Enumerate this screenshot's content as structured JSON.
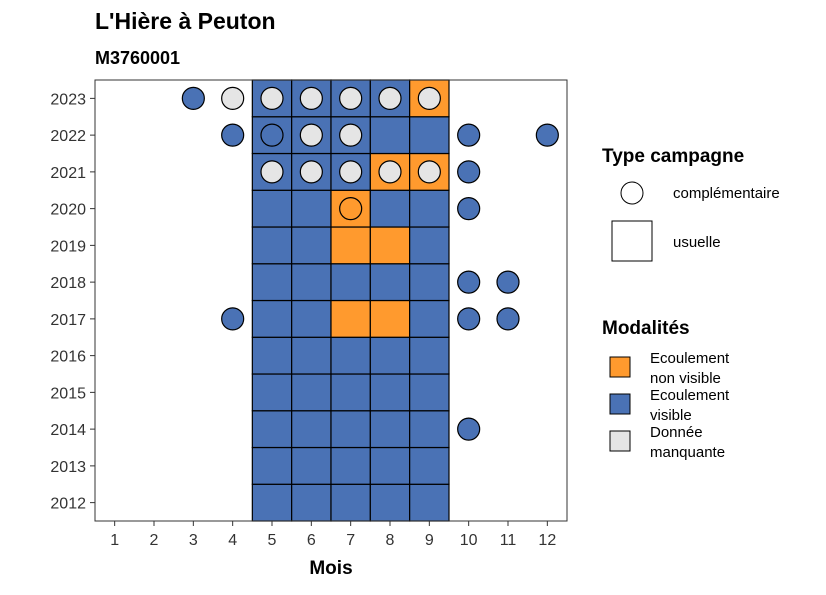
{
  "chart_data": {
    "type": "heatmap",
    "title": "L'Hière à Peuton",
    "subtitle": "M3760001",
    "xlabel": "Mois",
    "ylabel": "",
    "x_ticks": [
      1,
      2,
      3,
      4,
      5,
      6,
      7,
      8,
      9,
      10,
      11,
      12
    ],
    "y_ticks": [
      2012,
      2013,
      2014,
      2015,
      2016,
      2017,
      2018,
      2019,
      2020,
      2021,
      2022,
      2023
    ],
    "xlim": [
      0.5,
      12.5
    ],
    "ylim": [
      2011.5,
      2023.5
    ],
    "grid": false,
    "colors": {
      "non_visible": "#FF9A2E",
      "visible": "#4A72B5",
      "missing": "#E5E5E5"
    },
    "legend_campaign": {
      "title": "Type campagne",
      "placement": "right",
      "entries": [
        {
          "label": "complémentaire",
          "shape": "circle"
        },
        {
          "label": "usuelle",
          "shape": "square"
        }
      ]
    },
    "legend_modalities": {
      "title": "Modalités",
      "placement": "right",
      "entries": [
        {
          "line1": "Ecoulement",
          "line2": "non visible",
          "key": "non_visible"
        },
        {
          "line1": "Ecoulement",
          "line2": "visible",
          "key": "visible"
        },
        {
          "line1": "Donnée",
          "line2": "manquante",
          "key": "missing"
        }
      ]
    },
    "tiles": [
      {
        "year": 2012,
        "month": 5,
        "modality": "visible"
      },
      {
        "year": 2012,
        "month": 6,
        "modality": "visible"
      },
      {
        "year": 2012,
        "month": 7,
        "modality": "visible"
      },
      {
        "year": 2012,
        "month": 8,
        "modality": "visible"
      },
      {
        "year": 2012,
        "month": 9,
        "modality": "visible"
      },
      {
        "year": 2013,
        "month": 5,
        "modality": "visible"
      },
      {
        "year": 2013,
        "month": 6,
        "modality": "visible"
      },
      {
        "year": 2013,
        "month": 7,
        "modality": "visible"
      },
      {
        "year": 2013,
        "month": 8,
        "modality": "visible"
      },
      {
        "year": 2013,
        "month": 9,
        "modality": "visible"
      },
      {
        "year": 2014,
        "month": 5,
        "modality": "visible"
      },
      {
        "year": 2014,
        "month": 6,
        "modality": "visible"
      },
      {
        "year": 2014,
        "month": 7,
        "modality": "visible"
      },
      {
        "year": 2014,
        "month": 8,
        "modality": "visible"
      },
      {
        "year": 2014,
        "month": 9,
        "modality": "visible"
      },
      {
        "year": 2015,
        "month": 5,
        "modality": "visible"
      },
      {
        "year": 2015,
        "month": 6,
        "modality": "visible"
      },
      {
        "year": 2015,
        "month": 7,
        "modality": "visible"
      },
      {
        "year": 2015,
        "month": 8,
        "modality": "visible"
      },
      {
        "year": 2015,
        "month": 9,
        "modality": "visible"
      },
      {
        "year": 2016,
        "month": 5,
        "modality": "visible"
      },
      {
        "year": 2016,
        "month": 6,
        "modality": "visible"
      },
      {
        "year": 2016,
        "month": 7,
        "modality": "visible"
      },
      {
        "year": 2016,
        "month": 8,
        "modality": "visible"
      },
      {
        "year": 2016,
        "month": 9,
        "modality": "visible"
      },
      {
        "year": 2017,
        "month": 5,
        "modality": "visible"
      },
      {
        "year": 2017,
        "month": 6,
        "modality": "visible"
      },
      {
        "year": 2017,
        "month": 7,
        "modality": "non_visible"
      },
      {
        "year": 2017,
        "month": 8,
        "modality": "non_visible"
      },
      {
        "year": 2017,
        "month": 9,
        "modality": "visible"
      },
      {
        "year": 2018,
        "month": 5,
        "modality": "visible"
      },
      {
        "year": 2018,
        "month": 6,
        "modality": "visible"
      },
      {
        "year": 2018,
        "month": 7,
        "modality": "visible"
      },
      {
        "year": 2018,
        "month": 8,
        "modality": "visible"
      },
      {
        "year": 2018,
        "month": 9,
        "modality": "visible"
      },
      {
        "year": 2019,
        "month": 5,
        "modality": "visible"
      },
      {
        "year": 2019,
        "month": 6,
        "modality": "visible"
      },
      {
        "year": 2019,
        "month": 7,
        "modality": "non_visible"
      },
      {
        "year": 2019,
        "month": 8,
        "modality": "non_visible"
      },
      {
        "year": 2019,
        "month": 9,
        "modality": "visible"
      },
      {
        "year": 2020,
        "month": 5,
        "modality": "visible"
      },
      {
        "year": 2020,
        "month": 6,
        "modality": "visible"
      },
      {
        "year": 2020,
        "month": 7,
        "modality": "non_visible"
      },
      {
        "year": 2020,
        "month": 8,
        "modality": "visible"
      },
      {
        "year": 2020,
        "month": 9,
        "modality": "visible"
      },
      {
        "year": 2021,
        "month": 5,
        "modality": "visible"
      },
      {
        "year": 2021,
        "month": 6,
        "modality": "visible"
      },
      {
        "year": 2021,
        "month": 7,
        "modality": "visible"
      },
      {
        "year": 2021,
        "month": 8,
        "modality": "non_visible"
      },
      {
        "year": 2021,
        "month": 9,
        "modality": "non_visible"
      },
      {
        "year": 2022,
        "month": 5,
        "modality": "visible"
      },
      {
        "year": 2022,
        "month": 6,
        "modality": "visible"
      },
      {
        "year": 2022,
        "month": 7,
        "modality": "visible"
      },
      {
        "year": 2022,
        "month": 8,
        "modality": "visible"
      },
      {
        "year": 2022,
        "month": 9,
        "modality": "visible"
      },
      {
        "year": 2023,
        "month": 5,
        "modality": "visible"
      },
      {
        "year": 2023,
        "month": 6,
        "modality": "visible"
      },
      {
        "year": 2023,
        "month": 7,
        "modality": "visible"
      },
      {
        "year": 2023,
        "month": 8,
        "modality": "visible"
      },
      {
        "year": 2023,
        "month": 9,
        "modality": "non_visible"
      }
    ],
    "points": [
      {
        "year": 2023,
        "month": 3,
        "modality": "visible"
      },
      {
        "year": 2023,
        "month": 4,
        "modality": "missing"
      },
      {
        "year": 2023,
        "month": 5,
        "modality": "missing"
      },
      {
        "year": 2023,
        "month": 6,
        "modality": "missing"
      },
      {
        "year": 2023,
        "month": 7,
        "modality": "missing"
      },
      {
        "year": 2023,
        "month": 8,
        "modality": "missing"
      },
      {
        "year": 2023,
        "month": 9,
        "modality": "missing"
      },
      {
        "year": 2022,
        "month": 4,
        "modality": "visible"
      },
      {
        "year": 2022,
        "month": 5,
        "modality": "visible"
      },
      {
        "year": 2022,
        "month": 6,
        "modality": "missing"
      },
      {
        "year": 2022,
        "month": 7,
        "modality": "missing"
      },
      {
        "year": 2022,
        "month": 10,
        "modality": "visible"
      },
      {
        "year": 2022,
        "month": 12,
        "modality": "visible"
      },
      {
        "year": 2021,
        "month": 5,
        "modality": "missing"
      },
      {
        "year": 2021,
        "month": 6,
        "modality": "missing"
      },
      {
        "year": 2021,
        "month": 7,
        "modality": "missing"
      },
      {
        "year": 2021,
        "month": 8,
        "modality": "missing"
      },
      {
        "year": 2021,
        "month": 9,
        "modality": "missing"
      },
      {
        "year": 2021,
        "month": 10,
        "modality": "visible"
      },
      {
        "year": 2020,
        "month": 7,
        "modality": "non_visible"
      },
      {
        "year": 2020,
        "month": 10,
        "modality": "visible"
      },
      {
        "year": 2018,
        "month": 10,
        "modality": "visible"
      },
      {
        "year": 2018,
        "month": 11,
        "modality": "visible"
      },
      {
        "year": 2017,
        "month": 4,
        "modality": "visible"
      },
      {
        "year": 2017,
        "month": 10,
        "modality": "visible"
      },
      {
        "year": 2017,
        "month": 11,
        "modality": "visible"
      },
      {
        "year": 2014,
        "month": 10,
        "modality": "visible"
      }
    ]
  }
}
